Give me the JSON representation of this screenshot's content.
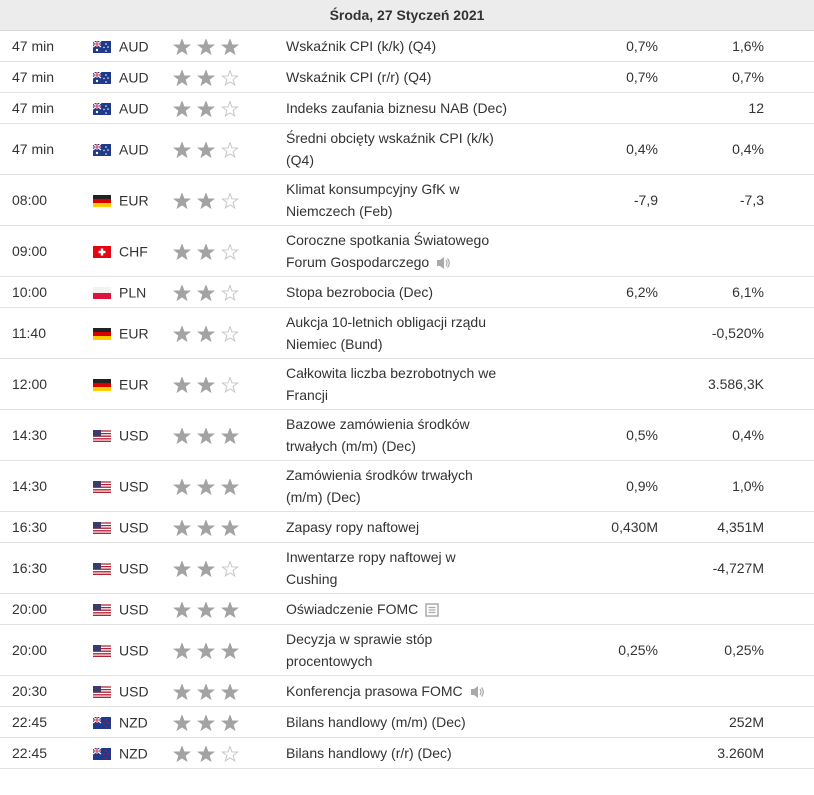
{
  "header": {
    "title": "Środa, 27 Styczeń 2021"
  },
  "table": {
    "rows": [
      {
        "time": "47 min",
        "currency": "AUD",
        "importance": 3,
        "event": "Wskaźnik CPI (k/k) (Q4)",
        "forecast": "0,7%",
        "previous": "1,6%"
      },
      {
        "time": "47 min",
        "currency": "AUD",
        "importance": 2,
        "event": "Wskaźnik CPI (r/r) (Q4)",
        "forecast": "0,7%",
        "previous": "0,7%"
      },
      {
        "time": "47 min",
        "currency": "AUD",
        "importance": 2,
        "event": "Indeks zaufania biznesu NAB (Dec)",
        "forecast": "",
        "previous": "12"
      },
      {
        "time": "47 min",
        "currency": "AUD",
        "importance": 2,
        "event": "Średni obcięty wskaźnik CPI (k/k) (Q4)",
        "forecast": "0,4%",
        "previous": "0,4%"
      },
      {
        "time": "08:00",
        "currency": "EUR",
        "importance": 2,
        "event": "Klimat konsumpcyjny GfK w Niemczech (Feb)",
        "forecast": "-7,9",
        "previous": "-7,3"
      },
      {
        "time": "09:00",
        "currency": "CHF",
        "importance": 2,
        "event": "Coroczne spotkania Światowego Forum Gospodarczego",
        "forecast": "",
        "previous": ""
      },
      {
        "time": "10:00",
        "currency": "PLN",
        "importance": 2,
        "event": "Stopa bezrobocia (Dec)",
        "forecast": "6,2%",
        "previous": "6,1%"
      },
      {
        "time": "11:40",
        "currency": "EUR",
        "importance": 2,
        "event": "Aukcja 10-letnich obligacji rządu Niemiec (Bund)",
        "forecast": "",
        "previous": "-0,520%"
      },
      {
        "time": "12:00",
        "currency": "EUR",
        "importance": 2,
        "event": "Całkowita liczba bezrobotnych we Francji",
        "forecast": "",
        "previous": "3.586,3K"
      },
      {
        "time": "14:30",
        "currency": "USD",
        "importance": 3,
        "event": "Bazowe zamówienia środków trwałych (m/m) (Dec)",
        "forecast": "0,5%",
        "previous": "0,4%"
      },
      {
        "time": "14:30",
        "currency": "USD",
        "importance": 3,
        "event": "Zamówienia środków trwałych (m/m) (Dec)",
        "forecast": "0,9%",
        "previous": "1,0%"
      },
      {
        "time": "16:30",
        "currency": "USD",
        "importance": 3,
        "event": "Zapasy ropy naftowej",
        "forecast": "0,430M",
        "previous": "4,351M"
      },
      {
        "time": "16:30",
        "currency": "USD",
        "importance": 2,
        "event": "Inwentarze ropy naftowej w Cushing",
        "forecast": "",
        "previous": "-4,727M"
      },
      {
        "time": "20:00",
        "currency": "USD",
        "importance": 3,
        "event": "Oświadczenie FOMC",
        "forecast": "",
        "previous": ""
      },
      {
        "time": "20:00",
        "currency": "USD",
        "importance": 3,
        "event": "Decyzja w sprawie stóp procentowych",
        "forecast": "0,25%",
        "previous": "0,25%"
      },
      {
        "time": "20:30",
        "currency": "USD",
        "importance": 3,
        "event": "Konferencja prasowa FOMC",
        "forecast": "",
        "previous": ""
      },
      {
        "time": "22:45",
        "currency": "NZD",
        "importance": 3,
        "event": "Bilans handlowy (m/m) (Dec)",
        "forecast": "",
        "previous": "252M"
      },
      {
        "time": "22:45",
        "currency": "NZD",
        "importance": 2,
        "event": "Bilans handlowy (r/r) (Dec)",
        "forecast": "",
        "previous": "3.260M"
      }
    ]
  }
}
